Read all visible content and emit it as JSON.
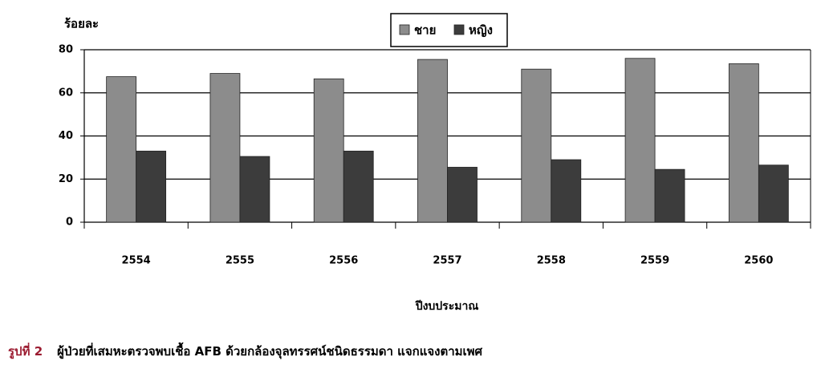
{
  "chart_data": {
    "type": "bar",
    "y_label": "ร้อยละ",
    "x_label": "ปีงบประมาณ",
    "categories": [
      "2554",
      "2555",
      "2556",
      "2557",
      "2558",
      "2559",
      "2560"
    ],
    "series": [
      {
        "name": "ชาย",
        "color": "#8c8c8c",
        "values": [
          67.5,
          69,
          66.5,
          75.5,
          71,
          76,
          73.5
        ]
      },
      {
        "name": "หญิง",
        "color": "#3c3c3c",
        "values": [
          33,
          30.5,
          33,
          25.5,
          29,
          24.5,
          26.5
        ]
      }
    ],
    "ylim": [
      0,
      80
    ],
    "yticks": [
      0,
      20,
      40,
      60,
      80
    ],
    "grid": true
  },
  "caption": {
    "label": "รูปที่ 2",
    "text": "ผู้ป่วยที่เสมหะตรวจพบเชื้อ AFB ด้วยกล้องจุลทรรศน์ชนิดธรรมดา แจกแจงตามเพศ"
  }
}
